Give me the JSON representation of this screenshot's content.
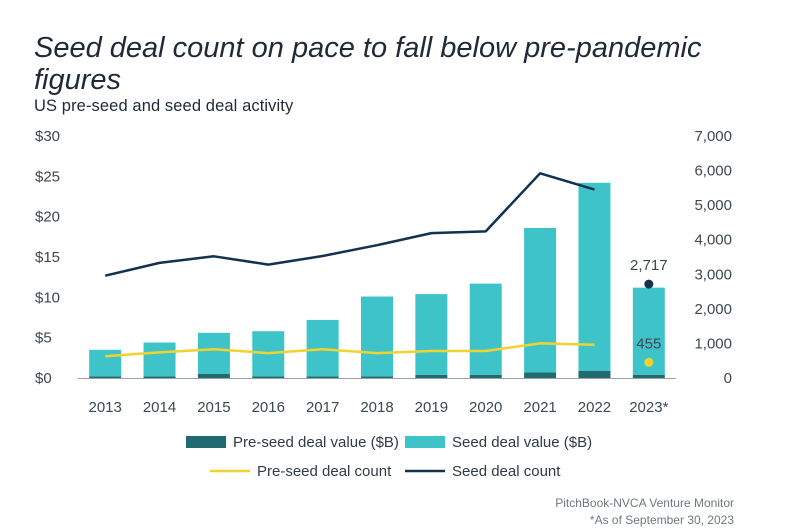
{
  "chart_data": {
    "type": "bar",
    "title": "Seed deal count on pace to fall below pre-pandemic figures",
    "subtitle": "US pre-seed and seed deal activity",
    "categories": [
      "2013",
      "2014",
      "2015",
      "2016",
      "2017",
      "2018",
      "2019",
      "2020",
      "2021",
      "2022",
      "2023*"
    ],
    "left_axis": {
      "ticks": [
        "$0",
        "$5",
        "$10",
        "$15",
        "$20",
        "$25",
        "$30"
      ],
      "range": [
        0,
        30
      ]
    },
    "right_axis": {
      "ticks": [
        "0",
        "1,000",
        "2,000",
        "3,000",
        "4,000",
        "5,000",
        "6,000",
        "7,000"
      ],
      "range": [
        0,
        7000
      ]
    },
    "stacked_bars": [
      {
        "name": "Pre-seed deal value ($B)",
        "axis": "left",
        "color": "#1f6b6f",
        "values": [
          0.2,
          0.2,
          0.5,
          0.2,
          0.2,
          0.2,
          0.4,
          0.4,
          0.7,
          0.9,
          0.4
        ]
      },
      {
        "name": "Seed deal value ($B)",
        "axis": "left",
        "color": "#3ec3c9",
        "values": [
          3.3,
          4.2,
          5.1,
          5.6,
          7.0,
          9.9,
          10.0,
          11.3,
          17.9,
          23.3,
          10.8
        ]
      }
    ],
    "lines": [
      {
        "name": "Pre-seed deal count",
        "axis": "right",
        "color": "#f2d22e",
        "values": [
          630,
          740,
          830,
          720,
          830,
          720,
          780,
          780,
          1000,
          960,
          null
        ],
        "point": {
          "category": "2023*",
          "value": 455,
          "label": "455"
        }
      },
      {
        "name": "Seed deal count",
        "axis": "right",
        "color": "#13324d",
        "values": [
          2960,
          3330,
          3520,
          3280,
          3530,
          3840,
          4190,
          4240,
          5920,
          5450,
          null
        ],
        "point": {
          "category": "2023*",
          "value": 2717,
          "label": "2,717"
        }
      }
    ],
    "legend": [
      {
        "label": "Pre-seed deal value ($B)",
        "kind": "box",
        "color": "#1f6b6f"
      },
      {
        "label": "Seed deal value ($B)",
        "kind": "box",
        "color": "#3ec3c9"
      },
      {
        "label": "Pre-seed deal count",
        "kind": "line",
        "color": "#f2d22e"
      },
      {
        "label": "Seed deal count",
        "kind": "line",
        "color": "#13324d"
      }
    ],
    "legend_position": "bottom"
  },
  "footer": {
    "source": "PitchBook-NVCA Venture Monitor",
    "note": "*As of September 30, 2023"
  }
}
